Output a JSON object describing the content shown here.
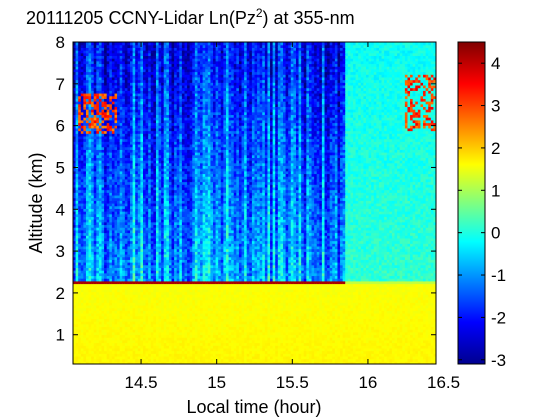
{
  "chart_data": {
    "type": "heatmap",
    "title": {
      "date": "20111205",
      "text_before_sup": "CCNY-Lidar Ln(Pz",
      "superscript": "2",
      "text_after_sup": ") at 355-nm"
    },
    "xlabel": "Local time (hour)",
    "ylabel": "Altitude (km)",
    "xlim": [
      14.05,
      16.45
    ],
    "ylim": [
      0.3,
      8.0
    ],
    "x_ticks": [
      "14.5",
      "15",
      "15.5",
      "16",
      "16.5"
    ],
    "x_tick_values": [
      14.5,
      15.0,
      15.5,
      16.0,
      16.5
    ],
    "y_ticks": [
      "1",
      "2",
      "3",
      "4",
      "5",
      "6",
      "7",
      "8"
    ],
    "y_tick_values": [
      1,
      2,
      3,
      4,
      5,
      6,
      7,
      8
    ],
    "colorbar": {
      "range": [
        -3.1,
        4.5
      ],
      "ticks": [
        "4",
        "3",
        "2",
        "1",
        "0",
        "-1",
        "-2",
        "-3"
      ],
      "tick_values": [
        4,
        3,
        2,
        1,
        0,
        -1,
        -2,
        -3
      ],
      "colormap": "jet",
      "colors": [
        "#00008f",
        "#0000ff",
        "#00ffff",
        "#ffff00",
        "#ff0000",
        "#800000"
      ]
    },
    "features": {
      "boundary_layer": {
        "x_range": [
          14.05,
          16.45
        ],
        "altitude_km": [
          0.3,
          2.2
        ],
        "value": 1.7
      },
      "pbl_top_aerosol_layer": {
        "x_range": [
          14.05,
          15.85
        ],
        "altitude_km": 2.2,
        "value": 4.2
      },
      "free_troposphere": {
        "x_range": [
          14.05,
          15.85
        ],
        "altitude_km": [
          2.3,
          8.0
        ],
        "value": -0.8
      },
      "later_free_troposphere": {
        "x_range": [
          15.85,
          16.45
        ],
        "altitude_km": [
          2.3,
          8.0
        ],
        "value": 0.1
      },
      "upper_cloud_early": {
        "x_range": [
          14.08,
          14.35
        ],
        "altitude_km": [
          5.8,
          6.8
        ],
        "value": 3.0
      },
      "upper_cloud_late": {
        "x_range": [
          16.25,
          16.45
        ],
        "altitude_km": [
          5.9,
          7.2
        ],
        "value": 3.2
      }
    }
  }
}
